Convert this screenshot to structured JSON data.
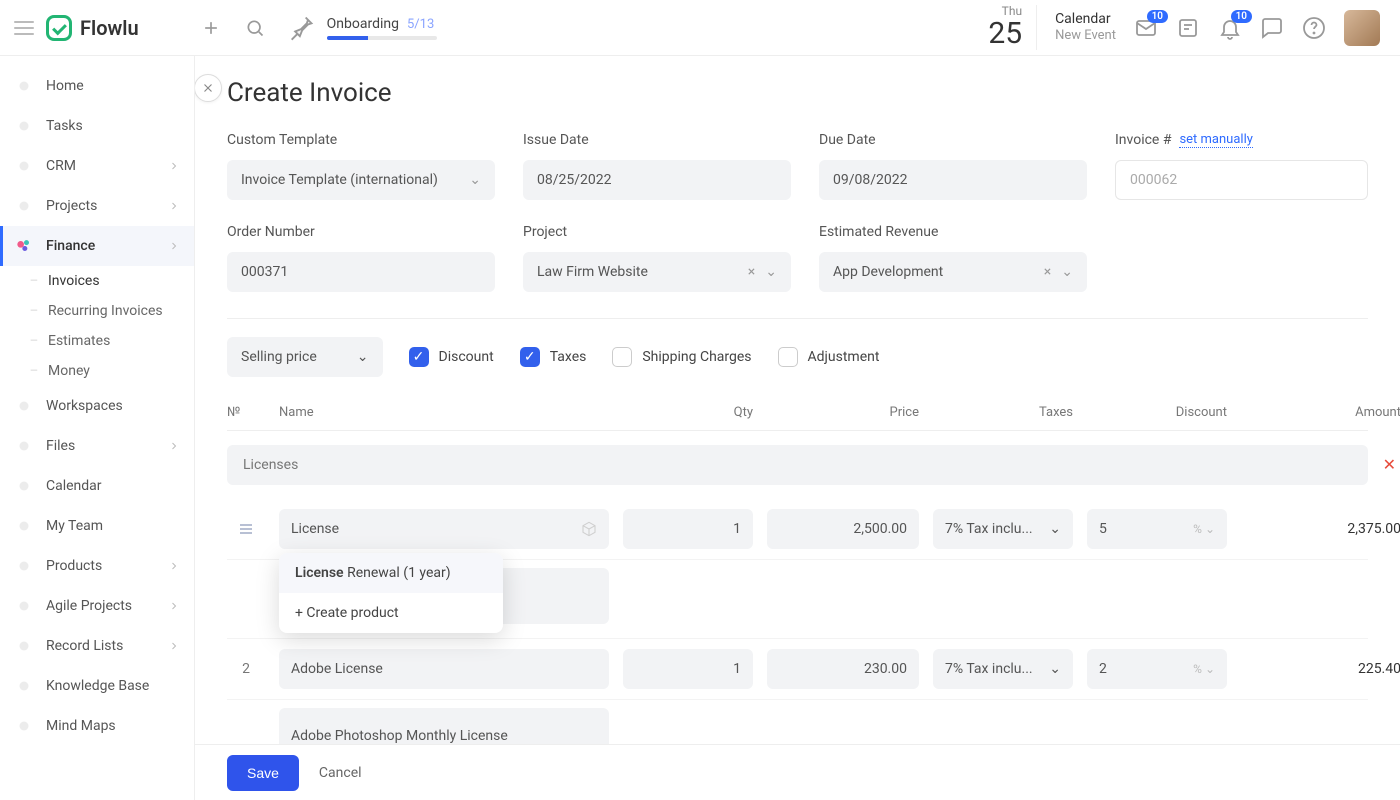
{
  "brand": "Flowlu",
  "topbar": {
    "onboarding_label": "Onboarding",
    "onboarding_progress": "5/13",
    "onboarding_pct": 38,
    "date_dow": "Thu",
    "date_day": "25",
    "calendar_title": "Calendar",
    "calendar_sub": "New Event",
    "inbox_badge": "10",
    "bell_badge": "10"
  },
  "sidebar": {
    "items": [
      {
        "label": "Home",
        "chev": false
      },
      {
        "label": "Tasks",
        "chev": false
      },
      {
        "label": "CRM",
        "chev": true
      },
      {
        "label": "Projects",
        "chev": true
      },
      {
        "label": "Finance",
        "chev": true,
        "active": true
      },
      {
        "label": "Workspaces",
        "chev": false
      },
      {
        "label": "Files",
        "chev": true
      },
      {
        "label": "Calendar",
        "chev": false
      },
      {
        "label": "My Team",
        "chev": false
      },
      {
        "label": "Products",
        "chev": true
      },
      {
        "label": "Agile Projects",
        "chev": true
      },
      {
        "label": "Record Lists",
        "chev": true
      },
      {
        "label": "Knowledge Base",
        "chev": false
      },
      {
        "label": "Mind Maps",
        "chev": false
      }
    ],
    "finance_sub": [
      "Invoices",
      "Recurring Invoices",
      "Estimates",
      "Money"
    ]
  },
  "page": {
    "title": "Create Invoice",
    "fields": {
      "template_label": "Custom Template",
      "template_value": "Invoice Template (international)",
      "issue_label": "Issue Date",
      "issue_value": "08/25/2022",
      "due_label": "Due Date",
      "due_value": "09/08/2022",
      "invoice_label": "Invoice #",
      "invoice_link": "set manually",
      "invoice_placeholder": "000062",
      "order_label": "Order Number",
      "order_value": "000371",
      "project_label": "Project",
      "project_value": "Law Firm Website",
      "revenue_label": "Estimated Revenue",
      "revenue_value": "App Development"
    },
    "options": {
      "price_mode": "Selling price",
      "discount": "Discount",
      "taxes": "Taxes",
      "shipping": "Shipping Charges",
      "adjustment": "Adjustment"
    },
    "table": {
      "headers": {
        "num": "№",
        "name": "Name",
        "qty": "Qty",
        "price": "Price",
        "taxes": "Taxes",
        "discount": "Discount",
        "amount": "Amount"
      },
      "group_label": "Licenses",
      "rows": [
        {
          "num": "",
          "name": "License",
          "qty": "1",
          "price": "2,500.00",
          "tax": "7% Tax inclu...",
          "discount": "5",
          "discount_unit": "%",
          "amount": "2,375.00",
          "desc": ""
        },
        {
          "num": "2",
          "name": "Adobe License",
          "qty": "1",
          "price": "230.00",
          "tax": "7% Tax inclu...",
          "discount": "2",
          "discount_unit": "%",
          "amount": "225.40",
          "desc": "Adobe Photoshop Monthly License"
        }
      ],
      "autocomplete": {
        "match_bold": "License",
        "match_rest": " Renewal (1 year)",
        "create": "+ Create product"
      }
    },
    "footer": {
      "save": "Save",
      "cancel": "Cancel"
    }
  },
  "colors": {
    "primary": "#2f54eb",
    "accent": "#3260ec",
    "green": "#22b573"
  }
}
